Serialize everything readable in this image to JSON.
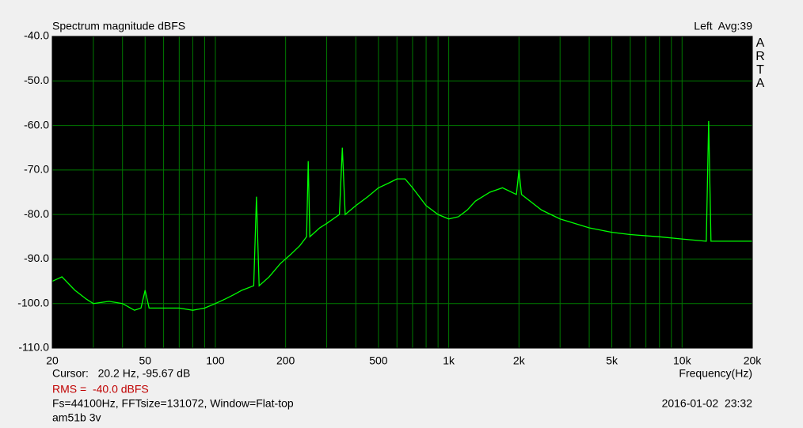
{
  "chart_data": {
    "type": "line",
    "title": "Spectrum magnitude dBFS",
    "subtitle": "Left  Avg:39",
    "brand": "ARTA",
    "x_label": "Frequency(Hz)",
    "cursor": "Cursor:   20.2 Hz, -95.67 dB",
    "rms": "RMS =  -40.0 dBFS",
    "settings": "Fs=44100Hz, FFTsize=131072, Window=Flat-top",
    "timestamp": "2016-01-02  23:32",
    "note": "am51b 3v",
    "x_log": true,
    "grid": true,
    "background": "#000000",
    "grid_color": "#007a00",
    "xlim": [
      20,
      20000
    ],
    "ylim": [
      -110,
      -40
    ],
    "xticks": [
      20,
      50,
      100,
      200,
      500,
      {
        "value": 1000,
        "label": "1k"
      },
      {
        "value": 2000,
        "label": "2k"
      },
      {
        "value": 5000,
        "label": "5k"
      },
      {
        "value": 10000,
        "label": "10k"
      },
      {
        "value": 20000,
        "label": "20k"
      }
    ],
    "x_gridlines": [
      30,
      40,
      60,
      70,
      80,
      90,
      300,
      400,
      600,
      700,
      800,
      900,
      3000,
      4000,
      6000,
      7000,
      8000,
      9000
    ],
    "yticks": [
      {
        "value": -40,
        "label": "-40.0"
      },
      {
        "value": -50,
        "label": "-50.0"
      },
      {
        "value": -60,
        "label": "-60.0"
      },
      {
        "value": -70,
        "label": "-70.0"
      },
      {
        "value": -80,
        "label": "-80.0"
      },
      {
        "value": -90,
        "label": "-90.0"
      },
      {
        "value": -100,
        "label": "-100.0"
      },
      {
        "value": -110,
        "label": "-110.0"
      }
    ],
    "x": [
      20,
      22,
      25,
      28,
      30,
      35,
      40,
      45,
      48,
      50,
      52,
      55,
      60,
      70,
      80,
      90,
      100,
      110,
      120,
      130,
      146,
      150,
      154,
      170,
      190,
      210,
      230,
      246,
      250,
      254,
      280,
      300,
      340,
      350,
      360,
      400,
      450,
      500,
      550,
      600,
      650,
      700,
      800,
      900,
      1000,
      1100,
      1200,
      1300,
      1500,
      1700,
      1950,
      2000,
      2050,
      2500,
      3000,
      4000,
      5000,
      6000,
      8000,
      10000,
      12700,
      13000,
      13300,
      16000,
      20000
    ],
    "series": [
      {
        "color": "#00ff00",
        "values": [
          -95,
          -94,
          -97,
          -99,
          -100,
          -99.5,
          -100,
          -101.5,
          -101,
          -97,
          -101,
          -101,
          -101,
          -101,
          -101.5,
          -101,
          -100,
          -99,
          -98,
          -97,
          -96,
          -76,
          -96,
          -94,
          -91,
          -89,
          -87,
          -85,
          -68,
          -85,
          -83,
          -82,
          -80,
          -65,
          -80,
          -78,
          -76,
          -74,
          -73,
          -72,
          -72,
          -74,
          -78,
          -80,
          -81,
          -80.5,
          -79,
          -77,
          -75,
          -74,
          -75.5,
          -70,
          -75.5,
          -79,
          -81,
          -83,
          -84,
          -84.5,
          -85,
          -85.5,
          -86,
          -59,
          -86,
          -86,
          -86
        ]
      }
    ]
  }
}
